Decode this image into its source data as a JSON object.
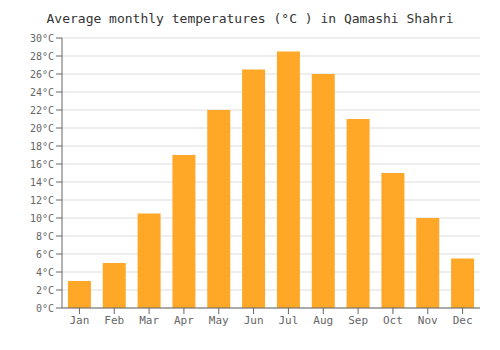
{
  "chart_data": {
    "type": "bar",
    "title": "Average monthly temperatures (°C ) in Qamashi Shahri",
    "categories": [
      "Jan",
      "Feb",
      "Mar",
      "Apr",
      "May",
      "Jun",
      "Jul",
      "Aug",
      "Sep",
      "Oct",
      "Nov",
      "Dec"
    ],
    "values": [
      3,
      5,
      10.5,
      17,
      22,
      26.5,
      28.5,
      26,
      21,
      15,
      10,
      5.5
    ],
    "color": "#FFA726",
    "ylim": [
      0,
      30
    ],
    "yticks": [
      {
        "value": 0,
        "label": "0°C"
      },
      {
        "value": 2,
        "label": "2°C"
      },
      {
        "value": 4,
        "label": "4°C"
      },
      {
        "value": 6,
        "label": "6°C"
      },
      {
        "value": 8,
        "label": "8°C"
      },
      {
        "value": 10,
        "label": "10°C"
      },
      {
        "value": 12,
        "label": "12°C"
      },
      {
        "value": 14,
        "label": "14°C"
      },
      {
        "value": 16,
        "label": "16°C"
      },
      {
        "value": 18,
        "label": "18°C"
      },
      {
        "value": 20,
        "label": "20°C"
      },
      {
        "value": 22,
        "label": "22°C"
      },
      {
        "value": 24,
        "label": "24°C"
      },
      {
        "value": 26,
        "label": "26°C"
      },
      {
        "value": 28,
        "label": "28°C"
      },
      {
        "value": 30,
        "label": "30°C"
      }
    ],
    "grid": true
  }
}
